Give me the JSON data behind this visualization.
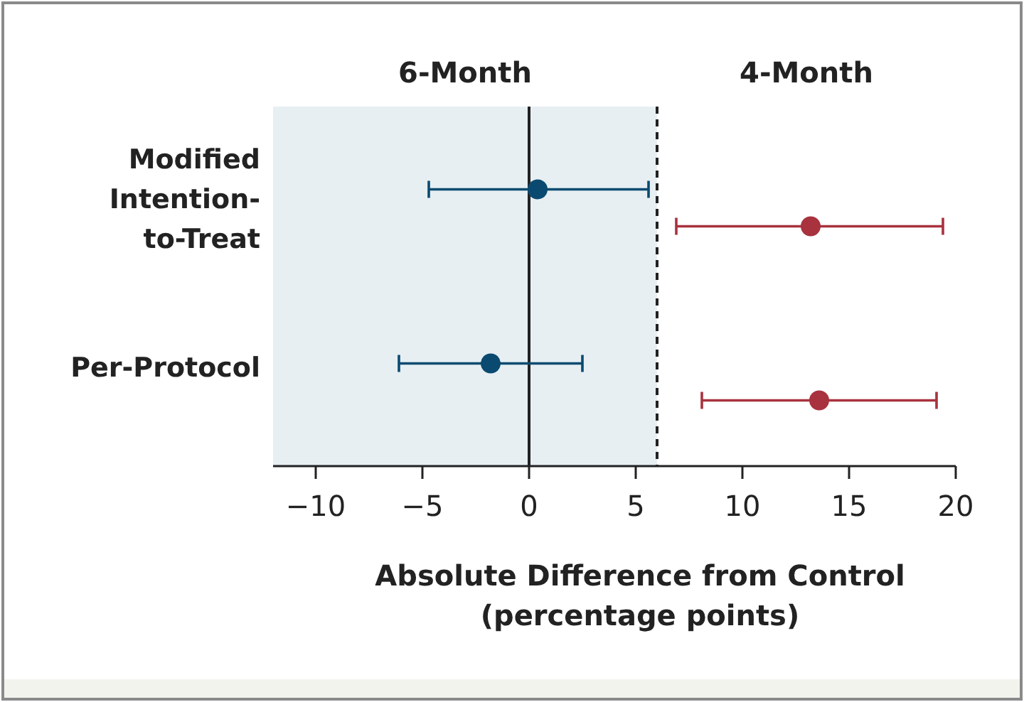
{
  "chart_data": {
    "type": "scatter",
    "orientation": "horizontal",
    "xlabel": "Absolute Difference from Control (percentage points)",
    "categories": [
      "Modified Intention-to-Treat",
      "Per-Protocol"
    ],
    "series": [
      {
        "color": "#0b4a70",
        "values": [
          0.4,
          -1.8
        ],
        "errors": [
          [
            -4.7,
            5.6
          ],
          [
            -6.1,
            2.5
          ]
        ]
      },
      {
        "color": "#a8323e",
        "values": [
          13.2,
          13.6
        ],
        "errors": [
          [
            6.9,
            19.4
          ],
          [
            8.1,
            19.1
          ]
        ]
      }
    ],
    "xlim": [
      -12,
      20
    ],
    "xticks": [
      {
        "value": -10,
        "label": "−10"
      },
      {
        "value": -5,
        "label": "−5"
      },
      0,
      5,
      10,
      15,
      20
    ],
    "bands": [
      {
        "axis": "x",
        "from": -12,
        "to": 6,
        "label": "6-Month",
        "color": "#e7eff3"
      }
    ],
    "annotations": [
      "4-Month"
    ],
    "ref_lines": [
      {
        "axis": "x",
        "value": 0,
        "color": "#222222",
        "line_style": "solid"
      },
      {
        "axis": "x",
        "value": 6,
        "color": "#222222",
        "line_style": "dashed"
      }
    ],
    "marker": "circle"
  }
}
